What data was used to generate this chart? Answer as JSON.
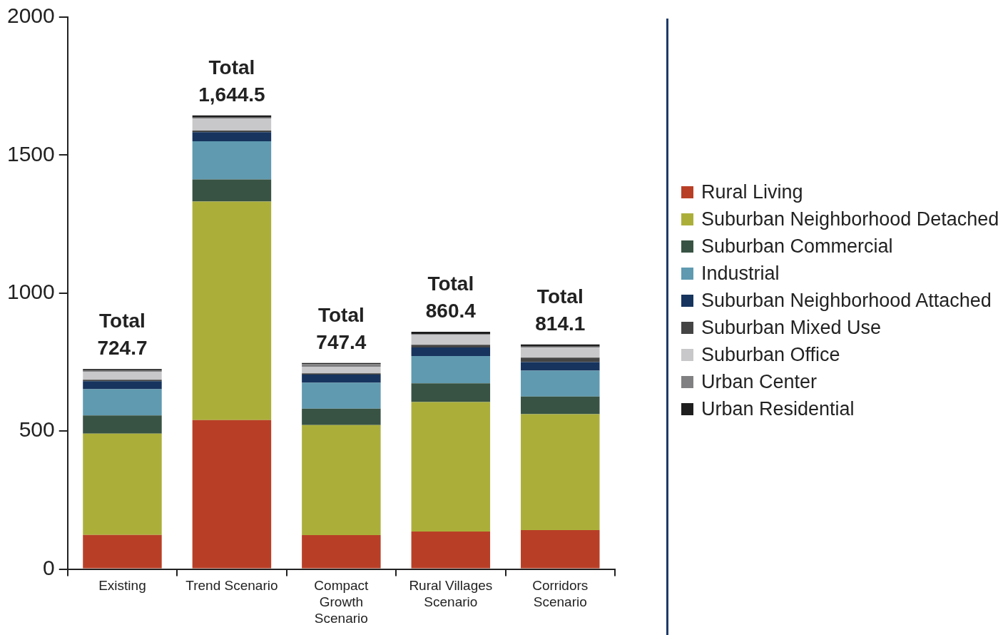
{
  "chart_data": {
    "type": "bar",
    "stacked": true,
    "categories": [
      "Existing",
      "Trend Scenario",
      "Compact Growth Scenario",
      "Rural Villages Scenario",
      "Corridors Scenario"
    ],
    "series": [
      {
        "name": "Rural Living",
        "color": "#b83f26",
        "values": [
          124,
          540,
          123,
          136,
          141
        ]
      },
      {
        "name": "Suburban Neighborhood Detached",
        "color": "#abaf3a",
        "values": [
          367,
          792,
          399,
          469,
          420
        ]
      },
      {
        "name": "Suburban Commercial",
        "color": "#385343",
        "values": [
          66,
          80,
          59,
          68,
          64
        ]
      },
      {
        "name": "Industrial",
        "color": "#5f9ab0",
        "values": [
          95,
          138,
          94,
          99,
          94
        ]
      },
      {
        "name": "Suburban Neighborhood Attached",
        "color": "#16345e",
        "values": [
          29,
          33,
          30,
          31,
          31
        ]
      },
      {
        "name": "Suburban Mixed Use",
        "color": "#444444",
        "values": [
          5,
          6,
          4,
          10,
          16
        ]
      },
      {
        "name": "Suburban Office",
        "color": "#c8c8ca",
        "values": [
          29,
          44,
          24,
          35,
          37
        ]
      },
      {
        "name": "Urban Center",
        "color": "#808082",
        "values": [
          4,
          3,
          10,
          4,
          3
        ]
      },
      {
        "name": "Urban Residential",
        "color": "#1e1e1e",
        "values": [
          6,
          8,
          4,
          8,
          8
        ]
      }
    ],
    "ylim": [
      0,
      2000
    ],
    "yticks": [
      0,
      500,
      1000,
      1500,
      2000
    ],
    "totals": [
      "Total 724.7",
      "Total 1,644.5",
      "Total 747.4",
      "Total 860.4",
      "Total 814.1"
    ],
    "grid": false,
    "legend": "right"
  }
}
